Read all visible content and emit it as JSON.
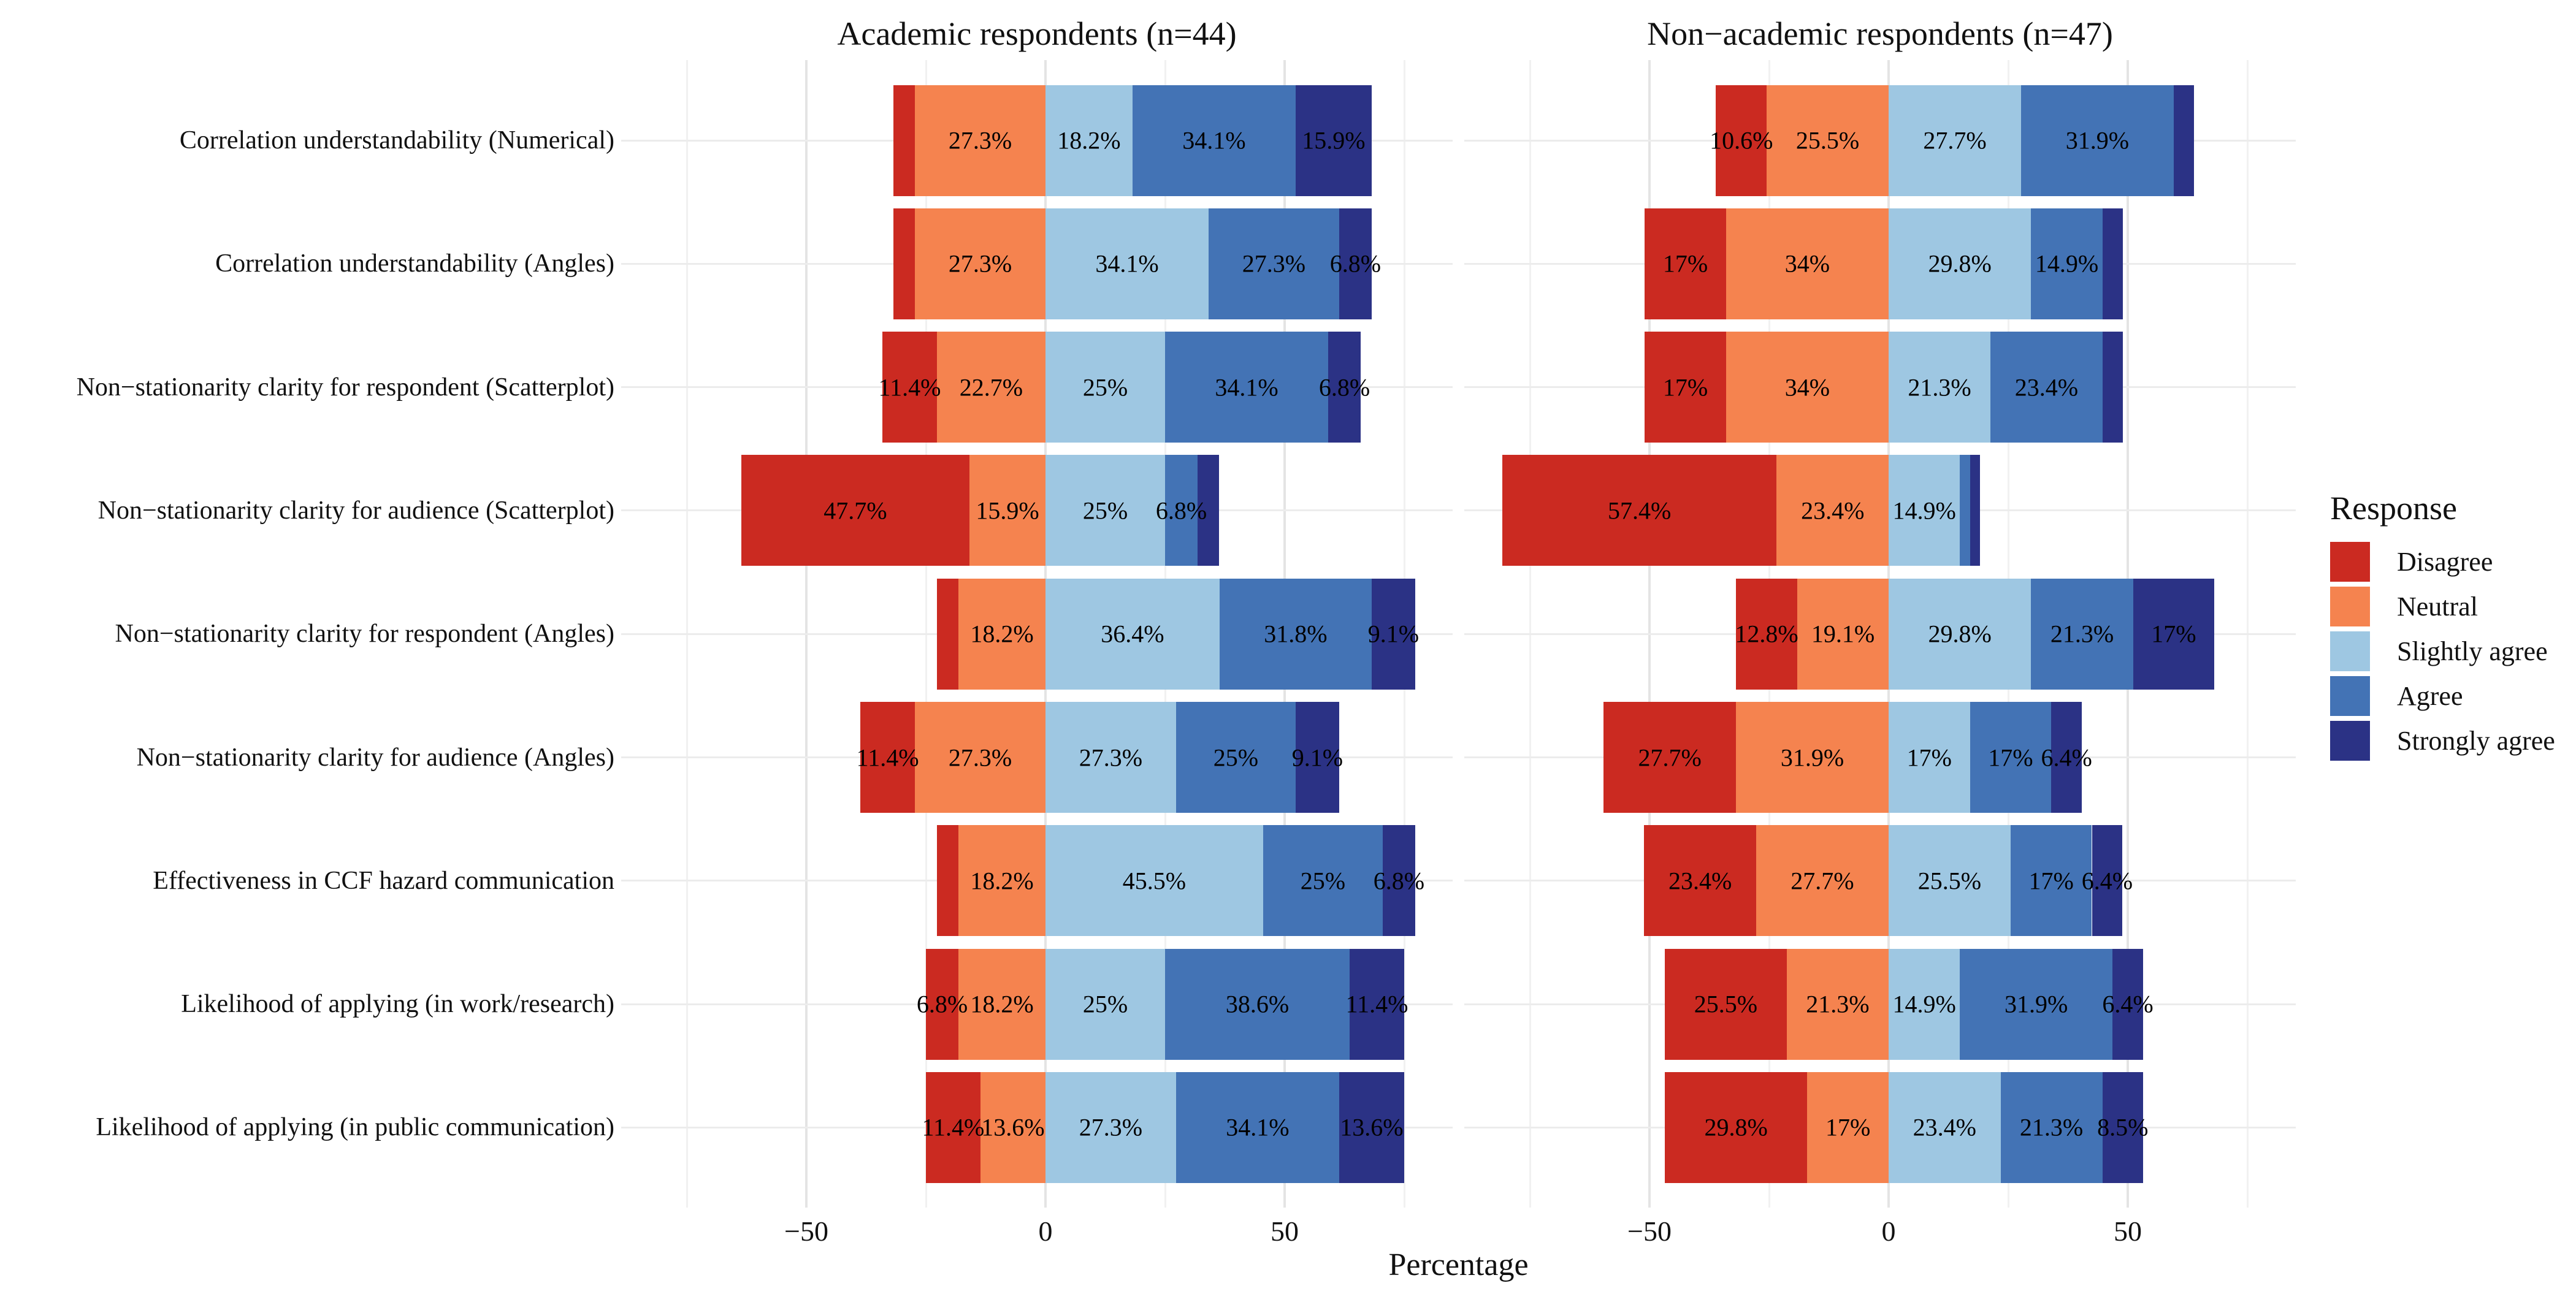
{
  "chart_data": {
    "type": "bar",
    "subtype": "diverging-stacked-likert",
    "orientation": "horizontal",
    "title": "",
    "xlabel": "Percentage",
    "x_ticks": [
      -50,
      0,
      50
    ],
    "x_minor_gridlines": [
      -75,
      -25,
      25,
      75
    ],
    "x_range": [
      -88.7,
      85.2
    ],
    "negative_stack": [
      "Disagree",
      "Neutral"
    ],
    "positive_stack": [
      "Slightly agree",
      "Agree",
      "Strongly agree"
    ],
    "grid": "on",
    "categories": [
      "Correlation understandability (Numerical)",
      "Correlation understandability (Angles)",
      "Non−stationarity clarity for respondent (Scatterplot)",
      "Non−stationarity clarity for audience (Scatterplot)",
      "Non−stationarity clarity for respondent (Angles)",
      "Non−stationarity clarity for audience (Angles)",
      "Effectiveness in CCF hazard communication",
      "Likelihood of applying (in work/research)",
      "Likelihood of applying (in public communication)"
    ],
    "legend": {
      "title": "Response",
      "position": "right",
      "items": [
        {
          "label": "Disagree",
          "color": "#cb2a21"
        },
        {
          "label": "Neutral",
          "color": "#f5834f"
        },
        {
          "label": "Slightly agree",
          "color": "#9ec7e2"
        },
        {
          "label": "Agree",
          "color": "#4373b5"
        },
        {
          "label": "Strongly agree",
          "color": "#2b3285"
        }
      ]
    },
    "panels": [
      {
        "title": "Academic respondents (n=44)",
        "n": 44,
        "rows": [
          {
            "values": [
              4.5,
              27.3,
              18.2,
              34.1,
              15.9
            ],
            "labels": [
              null,
              "27.3%",
              "18.2%",
              "34.1%",
              "15.9%"
            ]
          },
          {
            "values": [
              4.5,
              27.3,
              34.1,
              27.3,
              6.8
            ],
            "labels": [
              null,
              "27.3%",
              "34.1%",
              "27.3%",
              "6.8%"
            ]
          },
          {
            "values": [
              11.4,
              22.7,
              25,
              34.1,
              6.8
            ],
            "labels": [
              "11.4%",
              "22.7%",
              "25%",
              "34.1%",
              "6.8%"
            ]
          },
          {
            "values": [
              47.7,
              15.9,
              25,
              6.8,
              4.5
            ],
            "labels": [
              "47.7%",
              "15.9%",
              "25%",
              "6.8%",
              null
            ]
          },
          {
            "values": [
              4.5,
              18.2,
              36.4,
              31.8,
              9.1
            ],
            "labels": [
              null,
              "18.2%",
              "36.4%",
              "31.8%",
              "9.1%"
            ]
          },
          {
            "values": [
              11.4,
              27.3,
              27.3,
              25,
              9.1
            ],
            "labels": [
              "11.4%",
              "27.3%",
              "27.3%",
              "25%",
              "9.1%"
            ]
          },
          {
            "values": [
              4.5,
              18.2,
              45.5,
              25,
              6.8
            ],
            "labels": [
              null,
              "18.2%",
              "45.5%",
              "25%",
              "6.8%"
            ]
          },
          {
            "values": [
              6.8,
              18.2,
              25,
              38.6,
              11.4
            ],
            "labels": [
              "6.8%",
              "18.2%",
              "25%",
              "38.6%",
              "11.4%"
            ]
          },
          {
            "values": [
              11.4,
              13.6,
              27.3,
              34.1,
              13.6
            ],
            "labels": [
              "11.4%",
              "13.6%",
              "27.3%",
              "34.1%",
              "13.6%"
            ]
          }
        ]
      },
      {
        "title": "Non−academic respondents (n=47)",
        "n": 47,
        "rows": [
          {
            "values": [
              10.6,
              25.5,
              27.7,
              31.9,
              4.3
            ],
            "labels": [
              "10.6%",
              "25.5%",
              "27.7%",
              "31.9%",
              null
            ]
          },
          {
            "values": [
              17,
              34,
              29.8,
              14.9,
              4.3
            ],
            "labels": [
              "17%",
              "34%",
              "29.8%",
              "14.9%",
              null
            ]
          },
          {
            "values": [
              17,
              34,
              21.3,
              23.4,
              4.3
            ],
            "labels": [
              "17%",
              "34%",
              "21.3%",
              "23.4%",
              null
            ]
          },
          {
            "values": [
              57.4,
              23.4,
              14.9,
              2.1,
              2.1
            ],
            "labels": [
              "57.4%",
              "23.4%",
              "14.9%",
              null,
              null
            ]
          },
          {
            "values": [
              12.8,
              19.1,
              29.8,
              21.3,
              17
            ],
            "labels": [
              "12.8%",
              "19.1%",
              "29.8%",
              "21.3%",
              "17%"
            ]
          },
          {
            "values": [
              27.7,
              31.9,
              17,
              17,
              6.4
            ],
            "labels": [
              "27.7%",
              "31.9%",
              "17%",
              "17%",
              "6.4%"
            ]
          },
          {
            "values": [
              23.4,
              27.7,
              25.5,
              17,
              6.4
            ],
            "labels": [
              "23.4%",
              "27.7%",
              "25.5%",
              "17%",
              "6.4%"
            ]
          },
          {
            "values": [
              25.5,
              21.3,
              14.9,
              31.9,
              6.4
            ],
            "labels": [
              "25.5%",
              "21.3%",
              "14.9%",
              "31.9%",
              "6.4%"
            ]
          },
          {
            "values": [
              29.8,
              17,
              23.4,
              21.3,
              8.5
            ],
            "labels": [
              "29.8%",
              "17%",
              "23.4%",
              "21.3%",
              "8.5%"
            ]
          }
        ]
      }
    ]
  }
}
